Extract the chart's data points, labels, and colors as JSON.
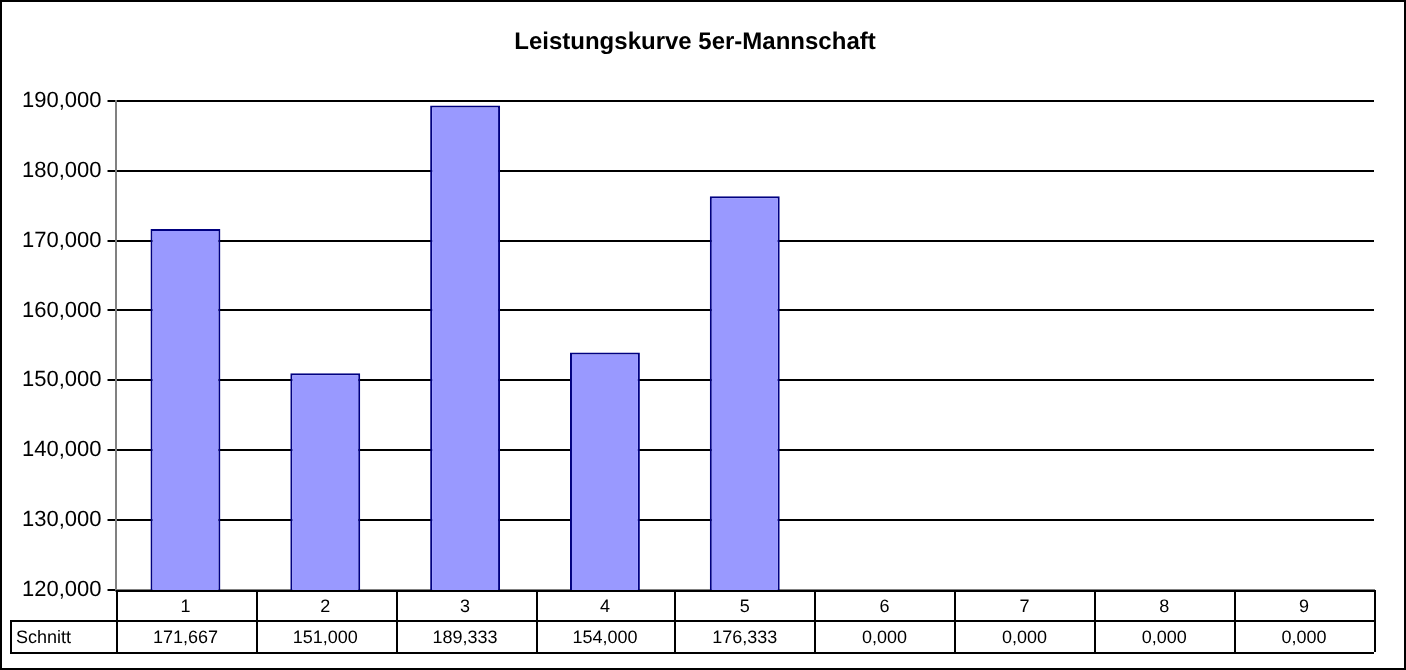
{
  "chart_data": {
    "type": "bar",
    "title": "Leistungskurve 5er-Mannschaft",
    "categories": [
      "1",
      "2",
      "3",
      "4",
      "5",
      "6",
      "7",
      "8",
      "9"
    ],
    "series": [
      {
        "name": "Schnitt",
        "color": "#9999ff",
        "values": [
          171.667,
          151,
          189.333,
          154,
          176.333,
          null,
          null,
          null,
          null
        ],
        "value_labels": [
          "171,667",
          "151,000",
          "189,333",
          "154,000",
          "176,333",
          "0,000",
          "0,000",
          "0,000",
          "0,000"
        ]
      }
    ],
    "ylim": [
      120,
      190
    ],
    "yticks": [
      {
        "value": 120,
        "label": "120,000"
      },
      {
        "value": 130,
        "label": "130,000"
      },
      {
        "value": 140,
        "label": "140,000"
      },
      {
        "value": 150,
        "label": "150,000"
      },
      {
        "value": 160,
        "label": "160,000"
      },
      {
        "value": 170,
        "label": "170,000"
      },
      {
        "value": 180,
        "label": "180,000"
      },
      {
        "value": 190,
        "label": "190,000"
      }
    ],
    "grid": "y",
    "legend": false
  }
}
